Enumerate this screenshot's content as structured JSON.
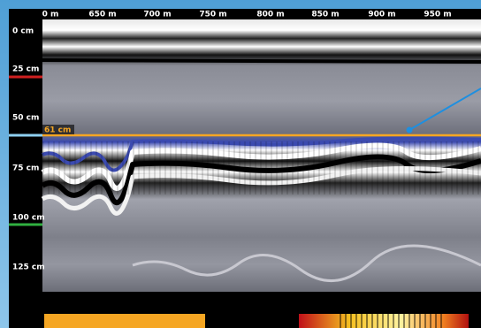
{
  "distance_labels": [
    "0 m",
    "650 m",
    "700 m",
    "750 m",
    "800 m",
    "850 m",
    "900 m",
    "950 m"
  ],
  "depth_labels": [
    "0 cm",
    "25 cm",
    "50 cm",
    "75 cm",
    "100 cm",
    "125 cm"
  ],
  "marker_label": "61 cm"
}
